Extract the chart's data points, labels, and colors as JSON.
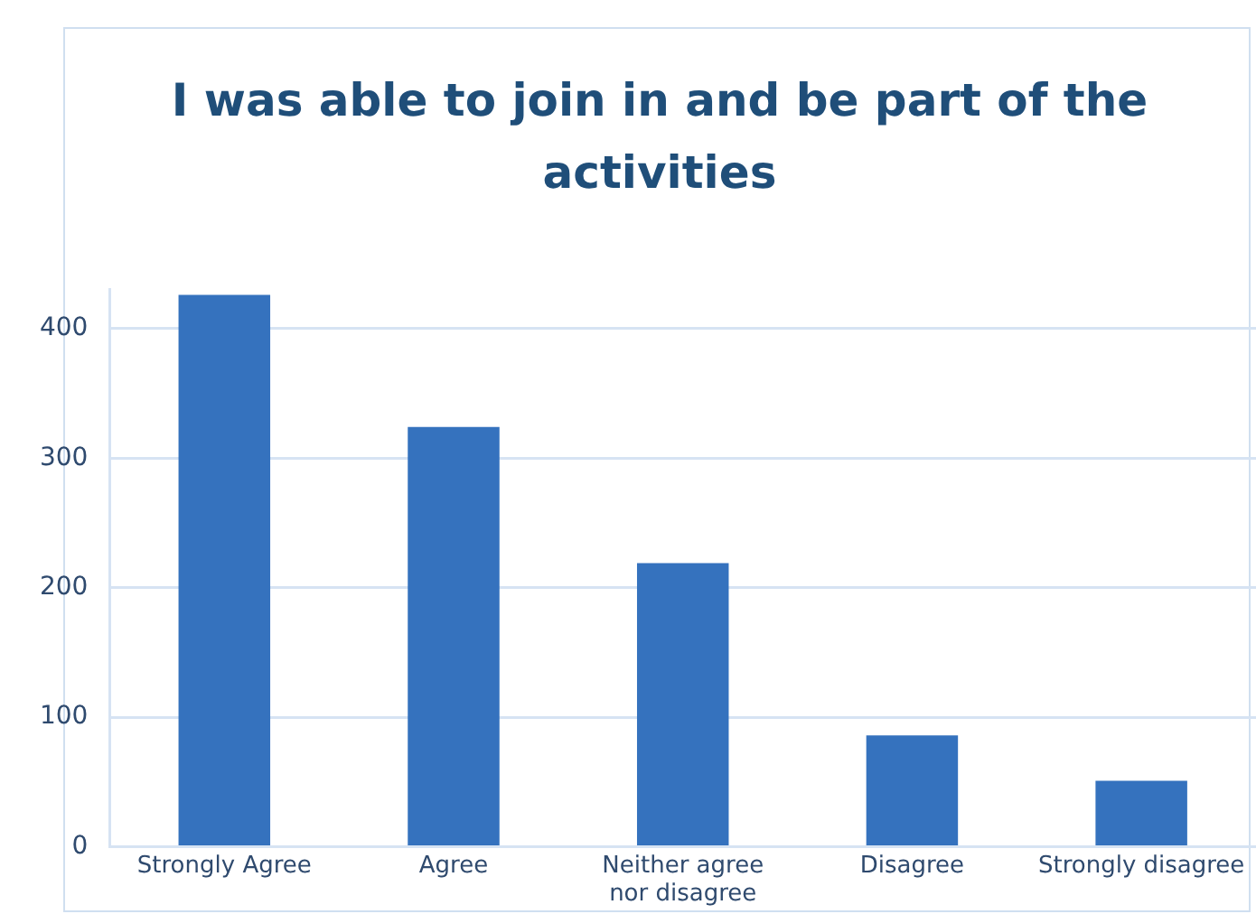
{
  "chart_data": {
    "type": "bar",
    "title": "I was able to join in and be part of the activities",
    "categories": [
      "Strongly Agree",
      "Agree",
      "Neither agree nor disagree",
      "Disagree",
      "Strongly disagree"
    ],
    "values": [
      426,
      324,
      219,
      86,
      51
    ],
    "color": "#3572be",
    "ylim": [
      0,
      430
    ],
    "yticks": [
      0,
      100,
      200,
      300,
      400
    ],
    "grid": "y"
  }
}
